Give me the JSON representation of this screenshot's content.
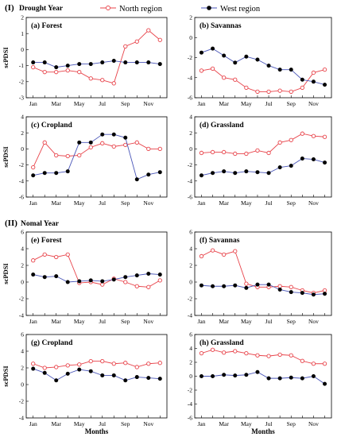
{
  "header": {
    "section1": "(I)",
    "section1_title": "Drought Year",
    "section2": "(II)",
    "section2_title": "Nomal Year"
  },
  "legend": {
    "north": "North region",
    "west": "West region"
  },
  "colors": {
    "north": "#e8434a",
    "west": "#4a56b8",
    "west_marker": "#000000"
  },
  "chart_data": [
    {
      "type": "line",
      "title": "(a) Forest",
      "ylabel": "scPDSI",
      "xlabel": "",
      "ylim": [
        -3,
        2
      ],
      "yticks": [
        -3,
        -2,
        -1,
        0,
        1,
        2
      ],
      "x": [
        1,
        2,
        3,
        4,
        5,
        6,
        7,
        8,
        9,
        10,
        11,
        12
      ],
      "tick_labels": [
        "Jan",
        "Mar",
        "May",
        "Jul",
        "Sep",
        "Nov"
      ],
      "series": [
        {
          "name": "North region",
          "values": [
            -1.1,
            -1.4,
            -1.4,
            -1.3,
            -1.4,
            -1.8,
            -1.9,
            -2.1,
            0.2,
            0.5,
            1.2,
            0.6
          ]
        },
        {
          "name": "West region",
          "values": [
            -0.8,
            -0.8,
            -1.1,
            -1.0,
            -0.9,
            -0.9,
            -0.8,
            -0.7,
            -0.8,
            -0.8,
            -0.8,
            -0.9
          ]
        }
      ]
    },
    {
      "type": "line",
      "title": "(b) Savannas",
      "ylabel": "",
      "xlabel": "",
      "ylim": [
        -6,
        2
      ],
      "yticks": [
        -6,
        -4,
        -2,
        0,
        2
      ],
      "x": [
        1,
        2,
        3,
        4,
        5,
        6,
        7,
        8,
        9,
        10,
        11,
        12
      ],
      "tick_labels": [
        "Jan",
        "Mar",
        "May",
        "Jul",
        "Sep",
        "Nov"
      ],
      "series": [
        {
          "name": "North region",
          "values": [
            -3.3,
            -3.1,
            -4.0,
            -4.2,
            -5.0,
            -5.4,
            -5.4,
            -5.3,
            -5.4,
            -5.0,
            -3.5,
            -3.2
          ]
        },
        {
          "name": "West region",
          "values": [
            -1.5,
            -1.1,
            -1.8,
            -2.5,
            -1.9,
            -2.2,
            -2.8,
            -3.2,
            -3.2,
            -4.2,
            -4.4,
            -4.7
          ]
        }
      ]
    },
    {
      "type": "line",
      "title": "(c) Cropland",
      "ylabel": "scPDSI",
      "xlabel": "",
      "ylim": [
        -6,
        4
      ],
      "yticks": [
        -6,
        -4,
        -2,
        0,
        2,
        4
      ],
      "x": [
        1,
        2,
        3,
        4,
        5,
        6,
        7,
        8,
        9,
        10,
        11,
        12
      ],
      "tick_labels": [
        "Jan",
        "Mar",
        "May",
        "Jul",
        "Sep",
        "Nov"
      ],
      "series": [
        {
          "name": "North region",
          "values": [
            -2.3,
            0.8,
            -0.8,
            -0.9,
            -0.8,
            0.2,
            0.7,
            0.3,
            0.5,
            0.8,
            0.0,
            0.0
          ]
        },
        {
          "name": "West region",
          "values": [
            -3.3,
            -3.0,
            -3.0,
            -2.8,
            0.8,
            0.8,
            1.8,
            1.8,
            1.4,
            -3.8,
            -3.2,
            -2.9
          ]
        }
      ]
    },
    {
      "type": "line",
      "title": "(d) Grassland",
      "ylabel": "",
      "xlabel": "",
      "ylim": [
        -6,
        4
      ],
      "yticks": [
        -6,
        -4,
        -2,
        0,
        2,
        4
      ],
      "x": [
        1,
        2,
        3,
        4,
        5,
        6,
        7,
        8,
        9,
        10,
        11,
        12
      ],
      "tick_labels": [
        "Jan",
        "Mar",
        "May",
        "Jul",
        "Sep",
        "Nov"
      ],
      "series": [
        {
          "name": "North region",
          "values": [
            -0.5,
            -0.4,
            -0.4,
            -0.6,
            -0.6,
            -0.2,
            -0.5,
            0.8,
            1.1,
            1.9,
            1.6,
            1.5
          ]
        },
        {
          "name": "West region",
          "values": [
            -3.3,
            -3.0,
            -2.8,
            -3.0,
            -2.8,
            -2.9,
            -3.0,
            -2.3,
            -2.1,
            -1.2,
            -1.3,
            -1.7
          ]
        }
      ]
    },
    {
      "type": "line",
      "title": "(e) Forest",
      "ylabel": "scPDSI",
      "xlabel": "",
      "ylim": [
        -4,
        6
      ],
      "yticks": [
        -4,
        -2,
        0,
        2,
        4,
        6
      ],
      "x": [
        1,
        2,
        3,
        4,
        5,
        6,
        7,
        8,
        9,
        10,
        11,
        12
      ],
      "tick_labels": [
        "Jan",
        "Mar",
        "May",
        "Jul",
        "Sep",
        "Nov"
      ],
      "series": [
        {
          "name": "North region",
          "values": [
            2.6,
            3.3,
            3.0,
            3.3,
            -0.1,
            0.0,
            -0.3,
            0.4,
            0.0,
            -0.5,
            -0.6,
            0.2
          ]
        },
        {
          "name": "West region",
          "values": [
            0.9,
            0.6,
            0.7,
            0.0,
            0.1,
            0.2,
            0.1,
            0.3,
            0.6,
            0.8,
            1.0,
            0.9
          ]
        }
      ]
    },
    {
      "type": "line",
      "title": "(f) Savannas",
      "ylabel": "",
      "xlabel": "",
      "ylim": [
        -4,
        6
      ],
      "yticks": [
        -4,
        -2,
        0,
        2,
        4,
        6
      ],
      "x": [
        1,
        2,
        3,
        4,
        5,
        6,
        7,
        8,
        9,
        10,
        11,
        12
      ],
      "tick_labels": [
        "Jan",
        "Mar",
        "May",
        "Jul",
        "Sep",
        "Nov"
      ],
      "series": [
        {
          "name": "North region",
          "values": [
            3.1,
            3.8,
            3.3,
            3.7,
            -0.2,
            -0.6,
            -0.6,
            -0.5,
            -0.6,
            -1.0,
            -1.3,
            -1.0
          ]
        },
        {
          "name": "West region",
          "values": [
            -0.4,
            -0.5,
            -0.5,
            -0.4,
            -0.7,
            -0.3,
            -0.3,
            -0.9,
            -1.2,
            -1.3,
            -1.5,
            -1.4
          ]
        }
      ]
    },
    {
      "type": "line",
      "title": "(g) Cropland",
      "ylabel": "scPDSI",
      "xlabel": "Months",
      "ylim": [
        -4,
        6
      ],
      "yticks": [
        -4,
        -2,
        0,
        2,
        4,
        6
      ],
      "x": [
        1,
        2,
        3,
        4,
        5,
        6,
        7,
        8,
        9,
        10,
        11,
        12
      ],
      "tick_labels": [
        "Jan",
        "Mar",
        "May",
        "Jul",
        "Sep",
        "Nov"
      ],
      "series": [
        {
          "name": "North region",
          "values": [
            2.5,
            2.0,
            2.1,
            2.3,
            2.4,
            2.8,
            2.8,
            2.5,
            2.6,
            2.1,
            2.5,
            2.6
          ]
        },
        {
          "name": "West region",
          "values": [
            1.9,
            1.4,
            0.5,
            1.3,
            1.8,
            1.6,
            1.1,
            1.1,
            0.5,
            0.9,
            0.8,
            0.7
          ]
        }
      ]
    },
    {
      "type": "line",
      "title": "(h) Grassland",
      "ylabel": "",
      "xlabel": "Months",
      "ylim": [
        -6,
        6
      ],
      "yticks": [
        -6,
        -4,
        -2,
        0,
        2,
        4,
        6
      ],
      "x": [
        1,
        2,
        3,
        4,
        5,
        6,
        7,
        8,
        9,
        10,
        11,
        12
      ],
      "tick_labels": [
        "Jan",
        "Mar",
        "May",
        "Jul",
        "Sep",
        "Nov"
      ],
      "series": [
        {
          "name": "North region",
          "values": [
            3.3,
            3.8,
            3.4,
            3.6,
            3.3,
            3.0,
            2.9,
            3.1,
            3.0,
            2.2,
            1.8,
            1.8
          ]
        },
        {
          "name": "West region",
          "values": [
            0.0,
            0.0,
            0.2,
            0.1,
            0.2,
            0.6,
            -0.3,
            -0.3,
            -0.2,
            -0.3,
            0.0,
            -1.1
          ]
        }
      ]
    }
  ]
}
